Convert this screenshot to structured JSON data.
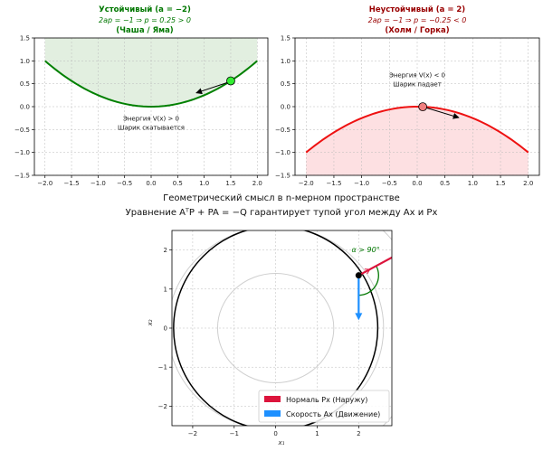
{
  "chart_data": [
    {
      "id": "stable",
      "type": "line",
      "title_line1": "Устойчивый (a = −2)",
      "title_line2": "2ap = −1 ⇒ p = 0.25 > 0",
      "title_line3": "(Чаша / Яма)",
      "title_color": "#007700",
      "curve_color": "#008000",
      "fill_color": "#e2efe0",
      "fill_region": "above_curve",
      "coefficient": 0.25,
      "x_range": [
        -2,
        2
      ],
      "xlim": [
        -2.2,
        2.2
      ],
      "ylim": [
        -1.5,
        1.5
      ],
      "x_ticks": [
        -2.0,
        -1.5,
        -1.0,
        -0.5,
        0.0,
        0.5,
        1.0,
        1.5,
        2.0
      ],
      "y_ticks": [
        -1.5,
        -1.0,
        -0.5,
        0.0,
        0.5,
        1.0,
        1.5
      ],
      "x_tick_labels": [
        "−2.0",
        "−1.5",
        "−1.0",
        "−0.5",
        "0.0",
        "0.5",
        "1.0",
        "1.5",
        "2.0"
      ],
      "y_tick_labels": [
        "−1.5",
        "−1.0",
        "−0.5",
        "0.0",
        "0.5",
        "1.0",
        "1.5"
      ],
      "ball": {
        "x": 1.5,
        "y": 0.5625,
        "color": "#33ee33"
      },
      "arrow": {
        "from": [
          1.45,
          0.53
        ],
        "to": [
          0.85,
          0.3
        ]
      },
      "annotation_line1": "Энергия V(x) > 0",
      "annotation_line2": "Шарик скатывается",
      "annotation_pos": [
        0.0,
        -0.35
      ]
    },
    {
      "id": "unstable",
      "type": "line",
      "title_line1": "Неустойчивый (a = 2)",
      "title_line2": "2ap = −1 ⇒ p = −0.25 < 0",
      "title_line3": "(Холм / Горка)",
      "title_color": "#990000",
      "curve_color": "#ee1111",
      "fill_color": "#fde0e2",
      "fill_region": "below_curve",
      "coefficient": -0.25,
      "x_range": [
        -2,
        2
      ],
      "xlim": [
        -2.2,
        2.2
      ],
      "ylim": [
        -1.5,
        1.5
      ],
      "x_ticks": [
        -2.0,
        -1.5,
        -1.0,
        -0.5,
        0.0,
        0.5,
        1.0,
        1.5,
        2.0
      ],
      "y_ticks": [
        -1.5,
        -1.0,
        -0.5,
        0.0,
        0.5,
        1.0,
        1.5
      ],
      "x_tick_labels": [
        "−2.0",
        "−1.5",
        "−1.0",
        "−0.5",
        "0.0",
        "0.5",
        "1.0",
        "1.5",
        "2.0"
      ],
      "y_tick_labels": [
        "−1.5",
        "−1.0",
        "−0.5",
        "0.0",
        "0.5",
        "1.0",
        "1.5"
      ],
      "ball": {
        "x": 0.1,
        "y": -0.0025,
        "color": "#f08080"
      },
      "arrow": {
        "from": [
          0.15,
          -0.02
        ],
        "to": [
          0.75,
          -0.24
        ]
      },
      "annotation_line1": "Энергия V(x) < 0",
      "annotation_line2": "Шарик падает",
      "annotation_pos": [
        0.0,
        0.6
      ]
    },
    {
      "id": "geometry",
      "type": "scatter",
      "suptitle_line1": "Геометрический смысл в n-мерном пространстве",
      "suptitle_line2": "Уравнение AᵀP + PA = −Q гарантирует тупой угол между Ax и Px",
      "xlabel": "x₁",
      "ylabel": "x₂",
      "xlim": [
        -2.5,
        2.8
      ],
      "ylim": [
        -2.5,
        2.5
      ],
      "x_ticks": [
        -2,
        -1,
        0,
        1,
        2
      ],
      "y_ticks": [
        -2,
        -1,
        0,
        1,
        2
      ],
      "x_tick_labels": [
        "−2",
        "−1",
        "0",
        "1",
        "2"
      ],
      "y_tick_labels": [
        "−2",
        "−1",
        "0",
        "1",
        "2"
      ],
      "contour_radii": [
        1.4,
        2.6,
        3.6
      ],
      "level_circle_radius": 2.46,
      "point": [
        2.0,
        1.35
      ],
      "normal_vector": {
        "dx": 1.4,
        "dy": 0.8,
        "color": "#dc143c"
      },
      "velocity_vector": {
        "dx": 0.0,
        "dy": -1.15,
        "color": "#1e90ff"
      },
      "angle_label": "α > 90°",
      "angle_label_pos": [
        2.17,
        1.95
      ],
      "angle_color": "#007700",
      "legend": [
        {
          "label": "Нормаль Px (Наружу)",
          "color": "#dc143c"
        },
        {
          "label": "Скорость Ax (Движение)",
          "color": "#1e90ff"
        }
      ]
    }
  ]
}
